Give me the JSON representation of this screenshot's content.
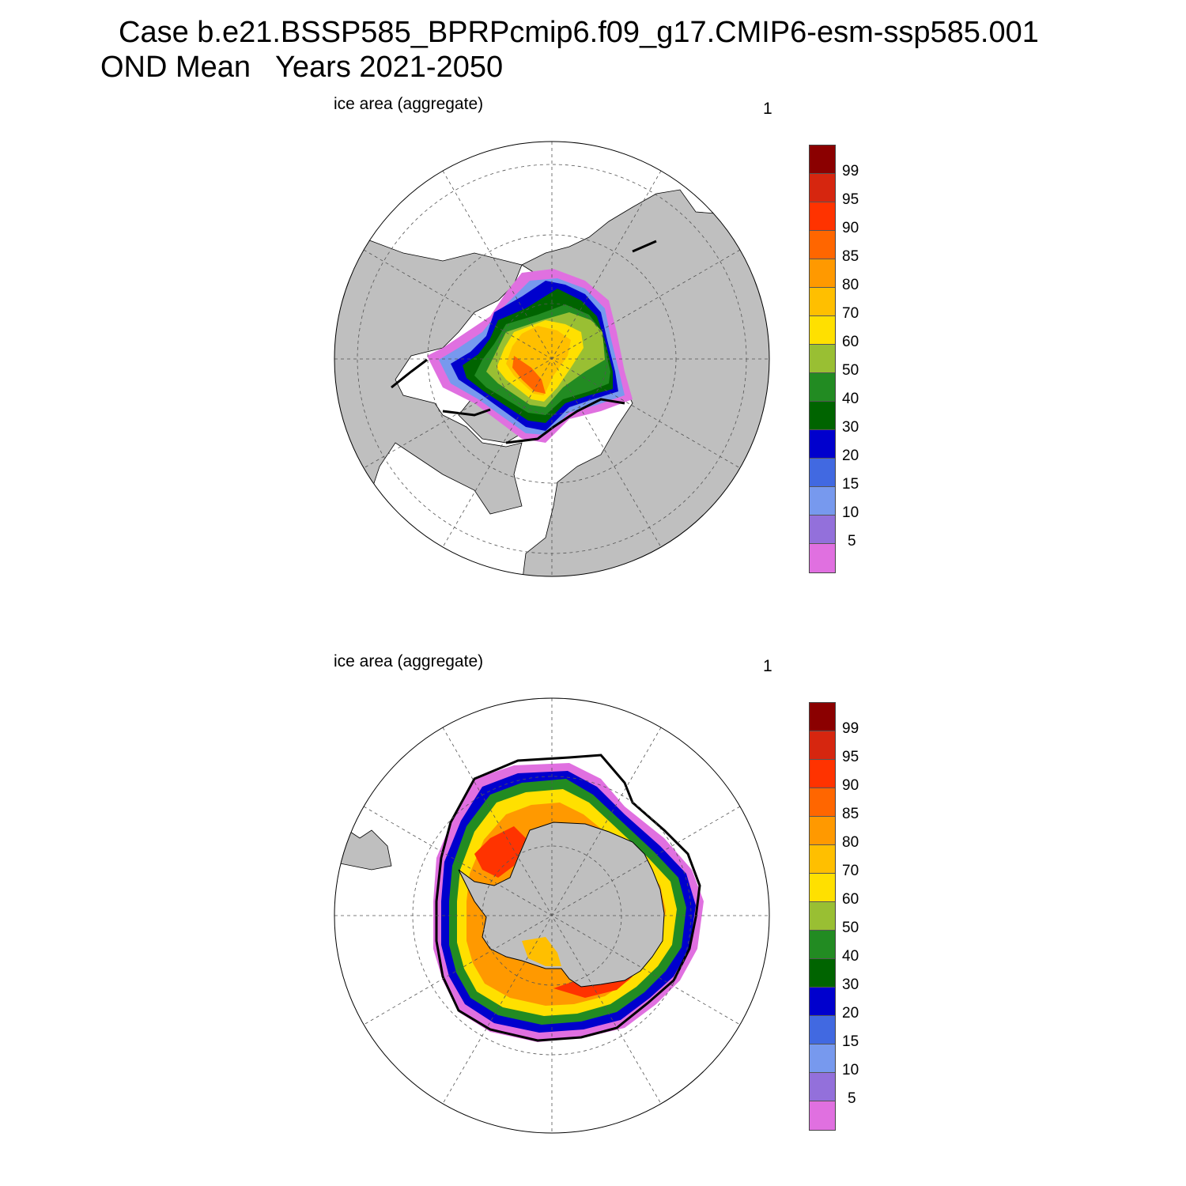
{
  "header": {
    "title": "Case b.e21.BSSP585_BPRPcmip6.f09_g17.CMIP6-esm-ssp585.001",
    "subtitle": "OND Mean   Years 2021-2050"
  },
  "panels": [
    {
      "id": "north",
      "label": "ice area  (aggregate)",
      "number": "1"
    },
    {
      "id": "south",
      "label": "ice area  (aggregate)",
      "number": "1"
    }
  ],
  "colorbar": {
    "labels": [
      "99",
      "95",
      "90",
      "85",
      "80",
      "70",
      "60",
      "50",
      "40",
      "30",
      "20",
      "15",
      "10",
      "5"
    ],
    "colors": [
      "#8b0000",
      "#d6260f",
      "#ff3300",
      "#ff6600",
      "#ff9900",
      "#ffbf00",
      "#ffe000",
      "#99bf33",
      "#228b22",
      "#006400",
      "#0000cd",
      "#4169e1",
      "#7799ee",
      "#9370db",
      "#e070e0"
    ]
  },
  "map_colors": {
    "land": "#bfbfbf",
    "ocean": "#ffffff",
    "grid": "#555555",
    "ice_edge": "#000000"
  }
}
